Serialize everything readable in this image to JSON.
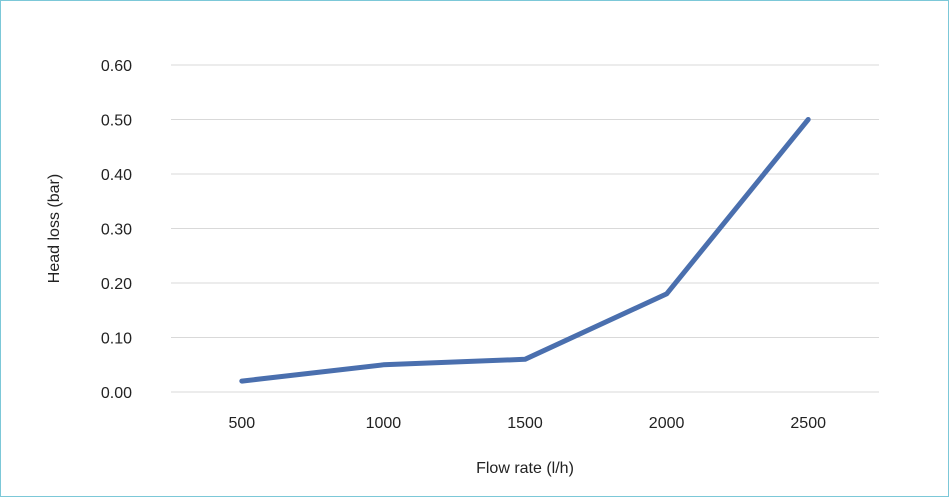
{
  "chart_data": {
    "type": "line",
    "title": "",
    "xlabel": "Flow rate (l/h)",
    "ylabel": "Head loss (bar)",
    "categories": [
      "500",
      "1000",
      "1500",
      "2000",
      "2500"
    ],
    "series": [
      {
        "values": [
          0.02,
          0.05,
          0.06,
          0.18,
          0.5
        ]
      }
    ],
    "ylim": [
      0,
      0.6
    ],
    "yticks": [
      "0.00",
      "0.10",
      "0.20",
      "0.30",
      "0.40",
      "0.50",
      "0.60"
    ],
    "grid": "horizontal",
    "legend": "none",
    "colors": {
      "line": "#4a6fae",
      "grid": "#d9d9d9",
      "frame": "#7cc8d8",
      "text": "#222222"
    }
  }
}
